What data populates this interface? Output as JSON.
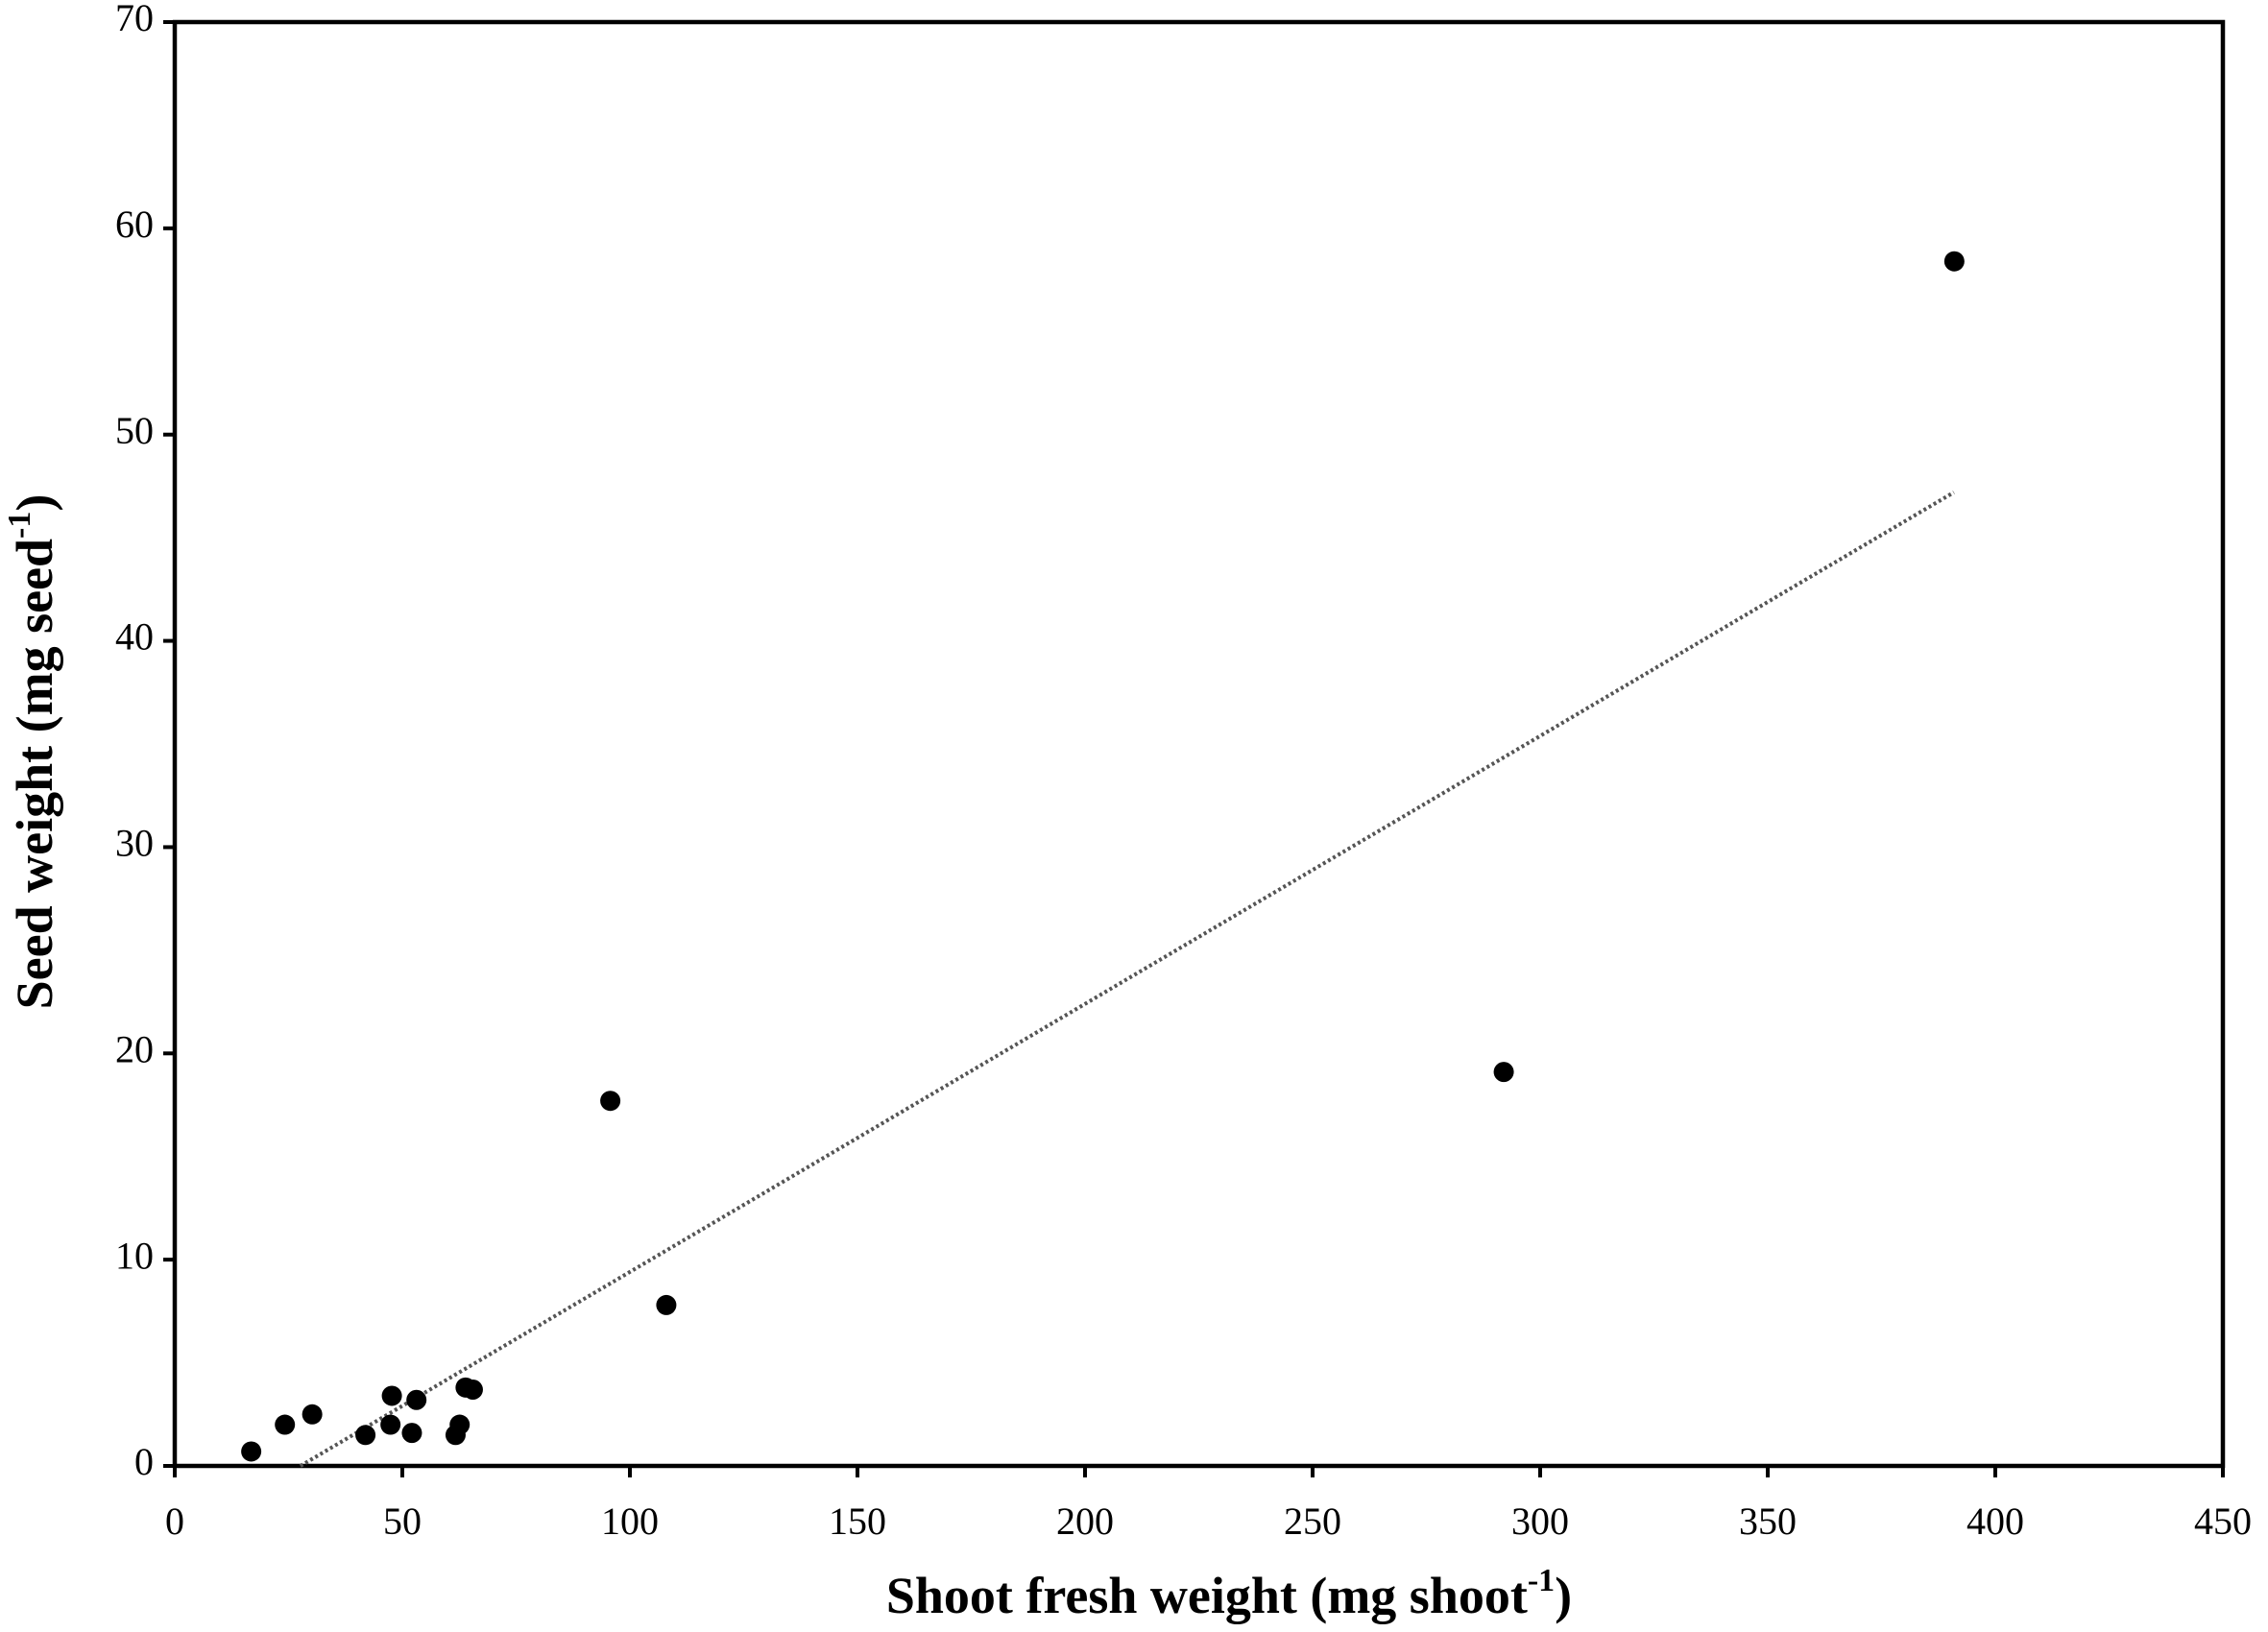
{
  "chart_data": {
    "type": "scatter",
    "x_label": [
      "Shoot fresh weight (mg shoot",
      "-1",
      ")"
    ],
    "y_label": [
      "Seed weight (mg seed",
      "-1",
      ")"
    ],
    "x": [
      16.8,
      24.2,
      30.2,
      41.9,
      47.4,
      47.7,
      52.1,
      53.1,
      61.7,
      62.6,
      63.9,
      65.5,
      95.7,
      108,
      292,
      391
    ],
    "y": [
      0.7,
      2.0,
      2.5,
      1.5,
      2.0,
      3.4,
      1.6,
      3.2,
      1.5,
      2.0,
      3.8,
      3.7,
      17.7,
      7.8,
      19.1,
      58.4
    ],
    "color": "#000000",
    "trendline": {
      "x": [
        27.6,
        390.9
      ],
      "y": [
        0,
        47.2
      ],
      "color": "#555555",
      "style": "dotted"
    },
    "xlim": [
      0,
      450
    ],
    "xticks": [
      0,
      50,
      100,
      150,
      200,
      250,
      300,
      350,
      400,
      450
    ],
    "ylim": [
      0,
      70
    ],
    "yticks": [
      0,
      10,
      20,
      30,
      40,
      50,
      60,
      70
    ],
    "grid": false
  }
}
